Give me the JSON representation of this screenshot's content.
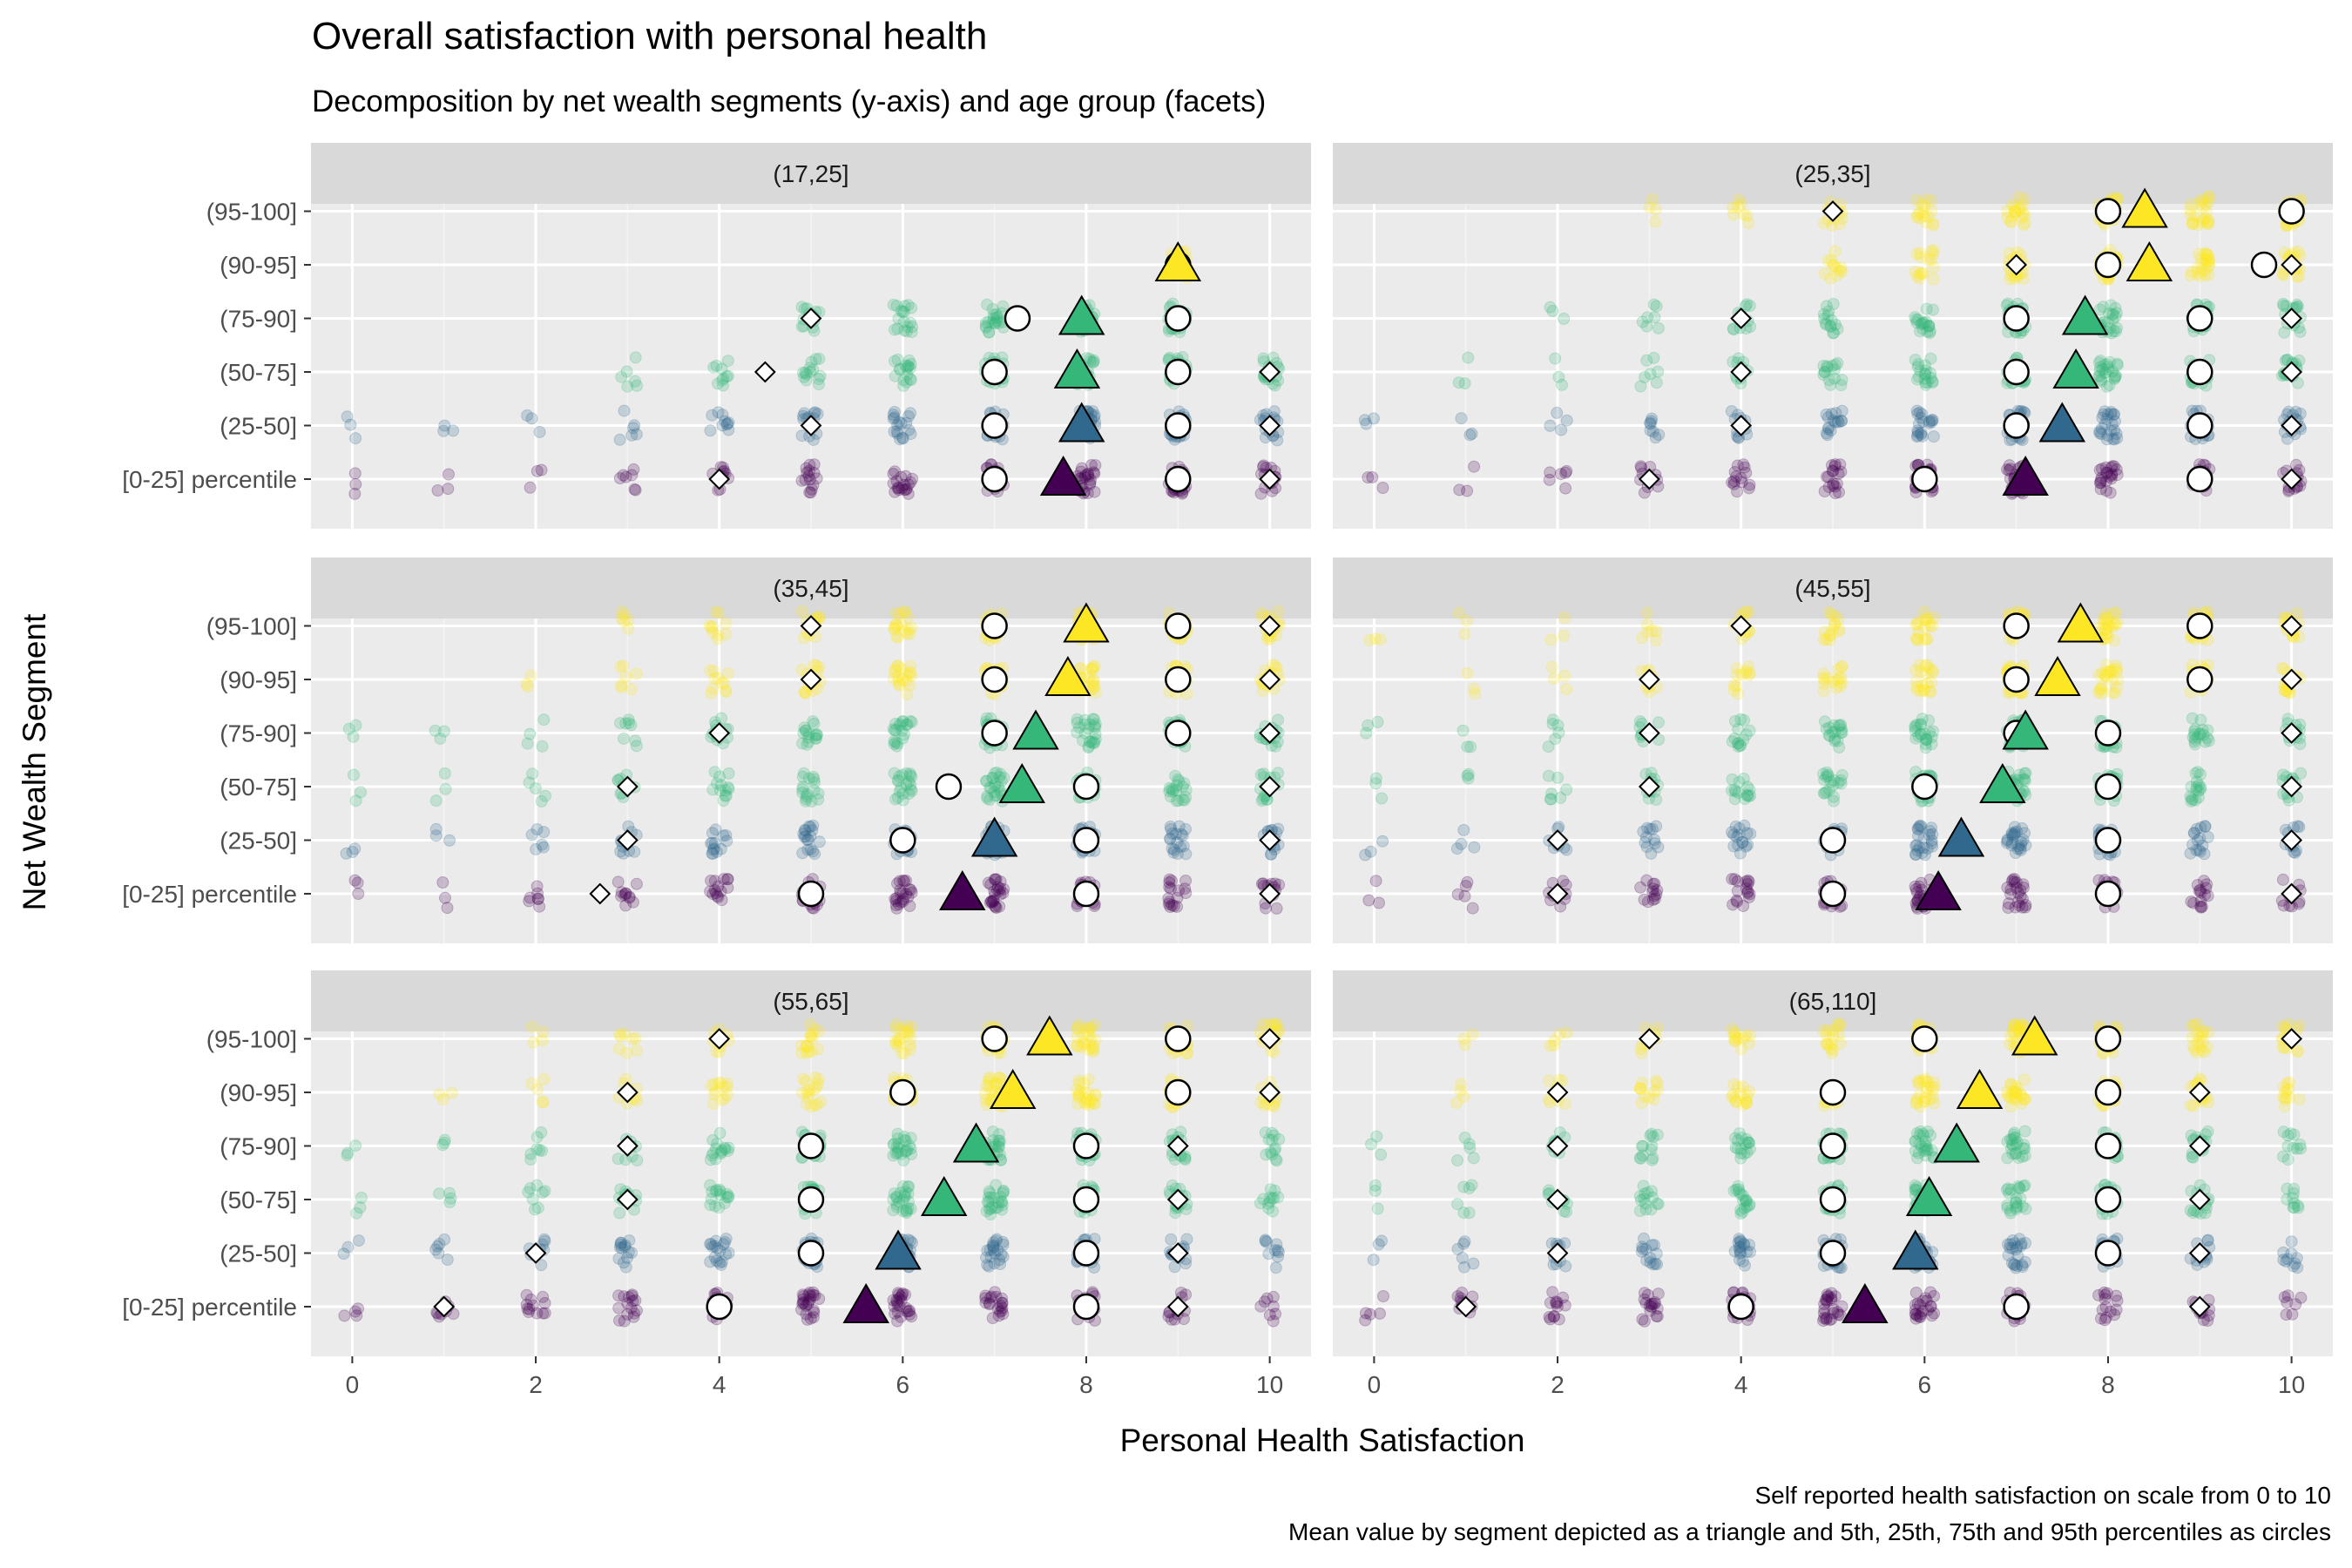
{
  "chart_data": {
    "type": "scatter",
    "title": "Overall satisfaction with personal health",
    "subtitle": "Decomposition by net wealth segments (y-axis) and age group (facets)",
    "xlabel": "Personal Health Satisfaction",
    "ylabel": "Net Wealth Segment",
    "caption": [
      "Self reported health satisfaction on scale from 0 to 10",
      "Mean value by segment depicted as a triangle and 5th, 25th, 75th and 95th percentiles as circles"
    ],
    "xlim": [
      -0.45,
      10.45
    ],
    "x_ticks": [
      0,
      2,
      4,
      6,
      8,
      10
    ],
    "segments": [
      "[0-25] percentile",
      "(25-50]",
      "(50-75]",
      "(75-90]",
      "(90-95]",
      "(95-100]"
    ],
    "segment_colors": [
      "#440154",
      "#31688e",
      "#35b779",
      "#35b779",
      "#fde725",
      "#fde725"
    ],
    "grid": true,
    "legend": "none",
    "facets": [
      {
        "label": "(17,25]",
        "mean": [
          7.75,
          7.95,
          7.9,
          7.95,
          9.0,
          null
        ],
        "percentiles": [
          [
            4,
            7,
            9,
            10
          ],
          [
            5,
            7,
            9,
            10
          ],
          [
            4.5,
            7,
            9,
            10
          ],
          [
            5,
            7.25,
            9,
            9
          ],
          [
            9,
            9,
            9,
            9
          ],
          null
        ],
        "jitter_x_ranges": [
          [
            0,
            10
          ],
          [
            0,
            10
          ],
          [
            3,
            10
          ],
          [
            5,
            9
          ],
          [
            9,
            9
          ],
          []
        ]
      },
      {
        "label": "(25,35]",
        "mean": [
          7.1,
          7.5,
          7.65,
          7.75,
          8.45,
          8.4
        ],
        "percentiles": [
          [
            3,
            6,
            9,
            10
          ],
          [
            4,
            7,
            9,
            10
          ],
          [
            4,
            7,
            9,
            10
          ],
          [
            4,
            7,
            9,
            10
          ],
          [
            7,
            8,
            9.7,
            10
          ],
          [
            5,
            8,
            10,
            10
          ]
        ],
        "jitter_x_ranges": [
          [
            0,
            10
          ],
          [
            0,
            10
          ],
          [
            1,
            10
          ],
          [
            2,
            10
          ],
          [
            5,
            10
          ],
          [
            3,
            10
          ]
        ]
      },
      {
        "label": "(35,45]",
        "mean": [
          6.65,
          7.0,
          7.3,
          7.45,
          7.8,
          8.0
        ],
        "percentiles": [
          [
            2.7,
            5,
            8,
            10
          ],
          [
            3,
            6,
            8,
            10
          ],
          [
            3,
            6.5,
            8,
            10
          ],
          [
            4,
            7,
            9,
            10
          ],
          [
            5,
            7,
            9,
            10
          ],
          [
            5,
            7,
            9,
            10
          ]
        ],
        "jitter_x_ranges": [
          [
            0,
            10
          ],
          [
            0,
            10
          ],
          [
            0,
            10
          ],
          [
            0,
            10
          ],
          [
            2,
            10
          ],
          [
            3,
            10
          ]
        ]
      },
      {
        "label": "(45,55]",
        "mean": [
          6.15,
          6.4,
          6.85,
          7.1,
          7.45,
          7.7
        ],
        "percentiles": [
          [
            2,
            5,
            8,
            10
          ],
          [
            2,
            5,
            8,
            10
          ],
          [
            3,
            6,
            8,
            10
          ],
          [
            3,
            7,
            8,
            10
          ],
          [
            3,
            7,
            9,
            10
          ],
          [
            4,
            7,
            9,
            10
          ]
        ],
        "jitter_x_ranges": [
          [
            0,
            10
          ],
          [
            0,
            10
          ],
          [
            0,
            10
          ],
          [
            0,
            10
          ],
          [
            1,
            10
          ],
          [
            0,
            10
          ]
        ]
      },
      {
        "label": "(55,65]",
        "mean": [
          5.6,
          5.95,
          6.45,
          6.8,
          7.2,
          7.6
        ],
        "percentiles": [
          [
            1,
            4,
            8,
            9
          ],
          [
            2,
            5,
            8,
            9
          ],
          [
            3,
            5,
            8,
            9
          ],
          [
            3,
            5,
            8,
            9
          ],
          [
            3,
            6,
            9,
            10
          ],
          [
            4,
            7,
            9,
            10
          ]
        ],
        "jitter_x_ranges": [
          [
            0,
            10
          ],
          [
            0,
            10
          ],
          [
            0,
            10
          ],
          [
            0,
            10
          ],
          [
            1,
            10
          ],
          [
            2,
            10
          ]
        ]
      },
      {
        "label": "(65,110]",
        "mean": [
          5.35,
          5.9,
          6.05,
          6.35,
          6.6,
          7.2
        ],
        "percentiles": [
          [
            1,
            4,
            7,
            9
          ],
          [
            2,
            5,
            8,
            9
          ],
          [
            2,
            5,
            8,
            9
          ],
          [
            2,
            5,
            8,
            9
          ],
          [
            2,
            5,
            8,
            9
          ],
          [
            3,
            6,
            8,
            10
          ]
        ],
        "jitter_x_ranges": [
          [
            0,
            10
          ],
          [
            0,
            10
          ],
          [
            0,
            10
          ],
          [
            0,
            10
          ],
          [
            1,
            10
          ],
          [
            1,
            10
          ]
        ]
      }
    ]
  }
}
